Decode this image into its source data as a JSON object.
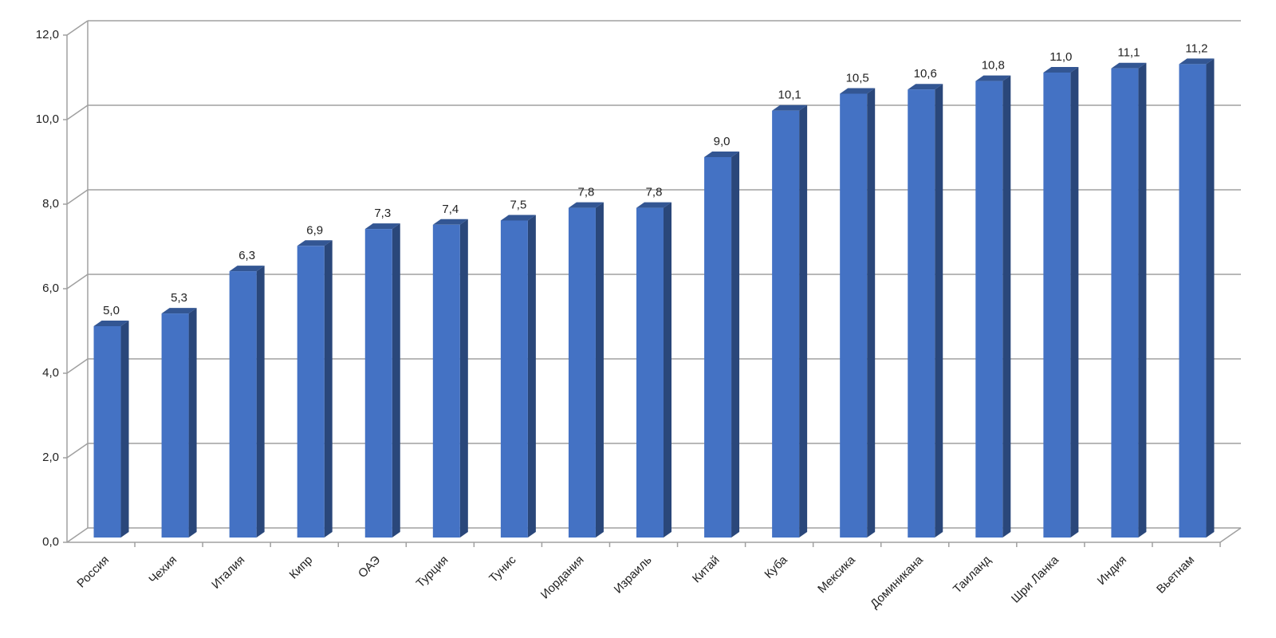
{
  "chart_data": {
    "type": "bar3d",
    "categories": [
      "Россия",
      "Чехия",
      "Италия",
      "Кипр",
      "ОАЭ",
      "Турция",
      "Тунис",
      "Иордания",
      "Израиль",
      "Китай",
      "Куба",
      "Мексика",
      "Доминикана",
      "Таиланд",
      "Шри Ланка",
      "Индия",
      "Вьетнам"
    ],
    "values": [
      5.0,
      5.3,
      6.3,
      6.9,
      7.3,
      7.4,
      7.5,
      7.8,
      7.8,
      9.0,
      10.1,
      10.5,
      10.6,
      10.8,
      11.0,
      11.1,
      11.2
    ],
    "value_labels": [
      "5,0",
      "5,3",
      "6,3",
      "6,9",
      "7,3",
      "7,4",
      "7,5",
      "7,8",
      "7,8",
      "9,0",
      "10,1",
      "10,5",
      "10,6",
      "10,8",
      "11,0",
      "11,1",
      "11,2"
    ],
    "color": "#4472c4",
    "ylim": [
      0,
      12
    ],
    "yticks": [
      {
        "value": 0,
        "label": "0,0"
      },
      {
        "value": 2,
        "label": "2,0"
      },
      {
        "value": 4,
        "label": "4,0"
      },
      {
        "value": 6,
        "label": "6,0"
      },
      {
        "value": 8,
        "label": "8,0"
      },
      {
        "value": 10,
        "label": "10,0"
      },
      {
        "value": 12,
        "label": "12,0"
      }
    ],
    "grid": true
  }
}
